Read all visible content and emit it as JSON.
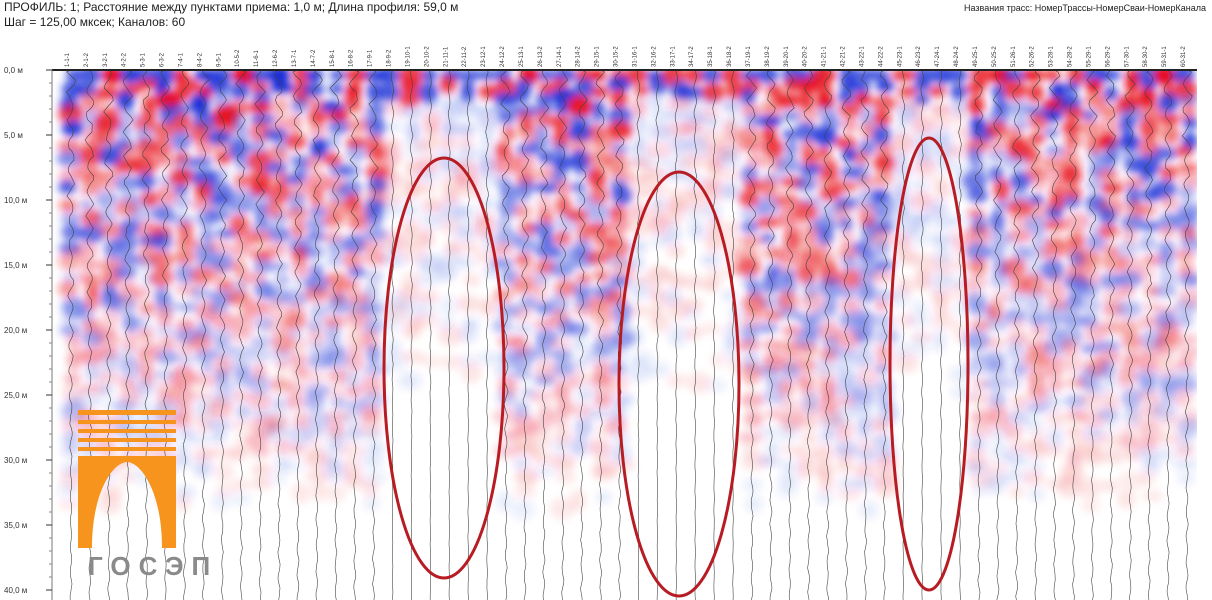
{
  "header": {
    "line1": "ПРОФИЛЬ: 1;  Расстояние между пунктами приема: 1,0 м;  Длина профиля: 59,0 м",
    "line2": "Шаг = 125,00 мксек;  Каналов: 60",
    "trace_names": "Названия трасс: НомерТрассы-НомерСваи-НомерКанала"
  },
  "depth_ticks": [
    "0,0 м",
    "5,0 м",
    "10,0 м",
    "15,0 м",
    "20,0 м",
    "25,0 м",
    "30,0 м",
    "35,0 м",
    "40,0 м"
  ],
  "traces": [
    "1-1-1",
    "2-1-2",
    "3-2-1",
    "4-2-2",
    "5-3-1",
    "6-3-2",
    "7-4-1",
    "8-4-2",
    "9-5-1",
    "10-5-2",
    "11-6-1",
    "12-6-2",
    "13-7-1",
    "14-7-2",
    "15-8-1",
    "16-8-2",
    "17-9-1",
    "18-9-2",
    "19-10-1",
    "20-10-2",
    "21-11-1",
    "22-11-2",
    "23-12-1",
    "24-12-2",
    "25-13-1",
    "26-13-2",
    "27-14-1",
    "28-14-2",
    "29-15-1",
    "30-15-2",
    "31-16-1",
    "32-16-2",
    "33-17-1",
    "34-17-2",
    "35-18-1",
    "36-18-2",
    "37-19-1",
    "38-19-2",
    "39-20-1",
    "40-20-2",
    "41-21-1",
    "42-21-2",
    "43-22-1",
    "44-22-2",
    "45-23-1",
    "46-23-2",
    "47-24-1",
    "48-24-2",
    "49-25-1",
    "50-25-2",
    "51-26-1",
    "52-26-2",
    "53-28-1",
    "54-28-2",
    "55-29-1",
    "56-29-2",
    "57-30-1",
    "58-30-2",
    "59-31-1",
    "60-31-2"
  ],
  "logo": "ГОСЭП"
}
